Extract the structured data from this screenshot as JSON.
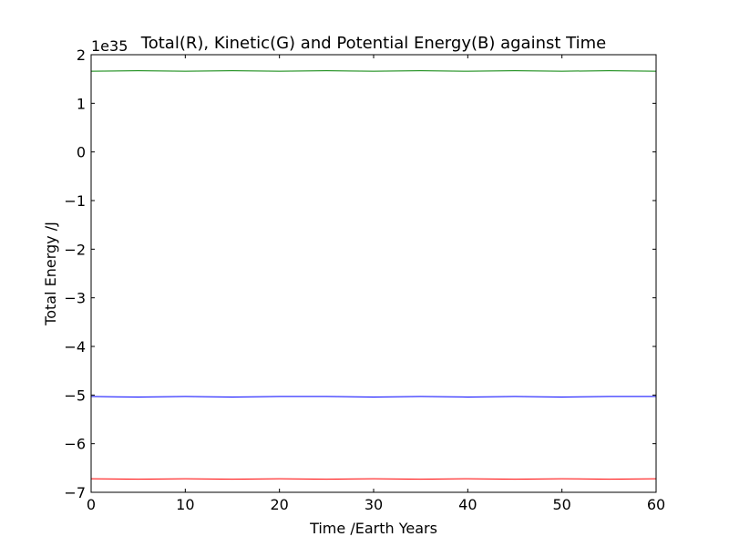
{
  "chart_data": {
    "type": "line",
    "title": "Total(R), Kinetic(G) and Potential Energy(B) against Time",
    "xlabel": "Time /Earth Years",
    "ylabel": "Total Energy /J",
    "offset_label": "1e35",
    "xlim": [
      0,
      60
    ],
    "ylim": [
      -7,
      2
    ],
    "xticks": [
      0,
      10,
      20,
      30,
      40,
      50,
      60
    ],
    "yticks": [
      2,
      1,
      0,
      -1,
      -2,
      -3,
      -4,
      -5,
      -6,
      -7
    ],
    "xtick_labels": [
      "0",
      "10",
      "20",
      "30",
      "40",
      "50",
      "60"
    ],
    "ytick_labels": [
      "2",
      "1",
      "0",
      "−1",
      "−2",
      "−3",
      "−4",
      "−5",
      "−6",
      "−7"
    ],
    "grid": false,
    "series": [
      {
        "color": "#008000",
        "x": [
          0,
          5,
          10,
          15,
          20,
          25,
          30,
          35,
          40,
          45,
          50,
          55,
          60
        ],
        "y": [
          1.66,
          1.67,
          1.66,
          1.67,
          1.66,
          1.67,
          1.66,
          1.67,
          1.66,
          1.67,
          1.66,
          1.67,
          1.66
        ]
      },
      {
        "color": "#0000ff",
        "x": [
          0,
          5,
          10,
          15,
          20,
          25,
          30,
          35,
          40,
          45,
          50,
          55,
          60
        ],
        "y": [
          -5.03,
          -5.04,
          -5.03,
          -5.04,
          -5.03,
          -5.03,
          -5.04,
          -5.03,
          -5.04,
          -5.03,
          -5.04,
          -5.03,
          -5.03
        ]
      },
      {
        "color": "#ff0000",
        "x": [
          0,
          5,
          10,
          15,
          20,
          25,
          30,
          35,
          40,
          45,
          50,
          55,
          60
        ],
        "y": [
          -6.72,
          -6.73,
          -6.72,
          -6.73,
          -6.72,
          -6.73,
          -6.72,
          -6.73,
          -6.72,
          -6.73,
          -6.72,
          -6.73,
          -6.72
        ]
      }
    ]
  }
}
